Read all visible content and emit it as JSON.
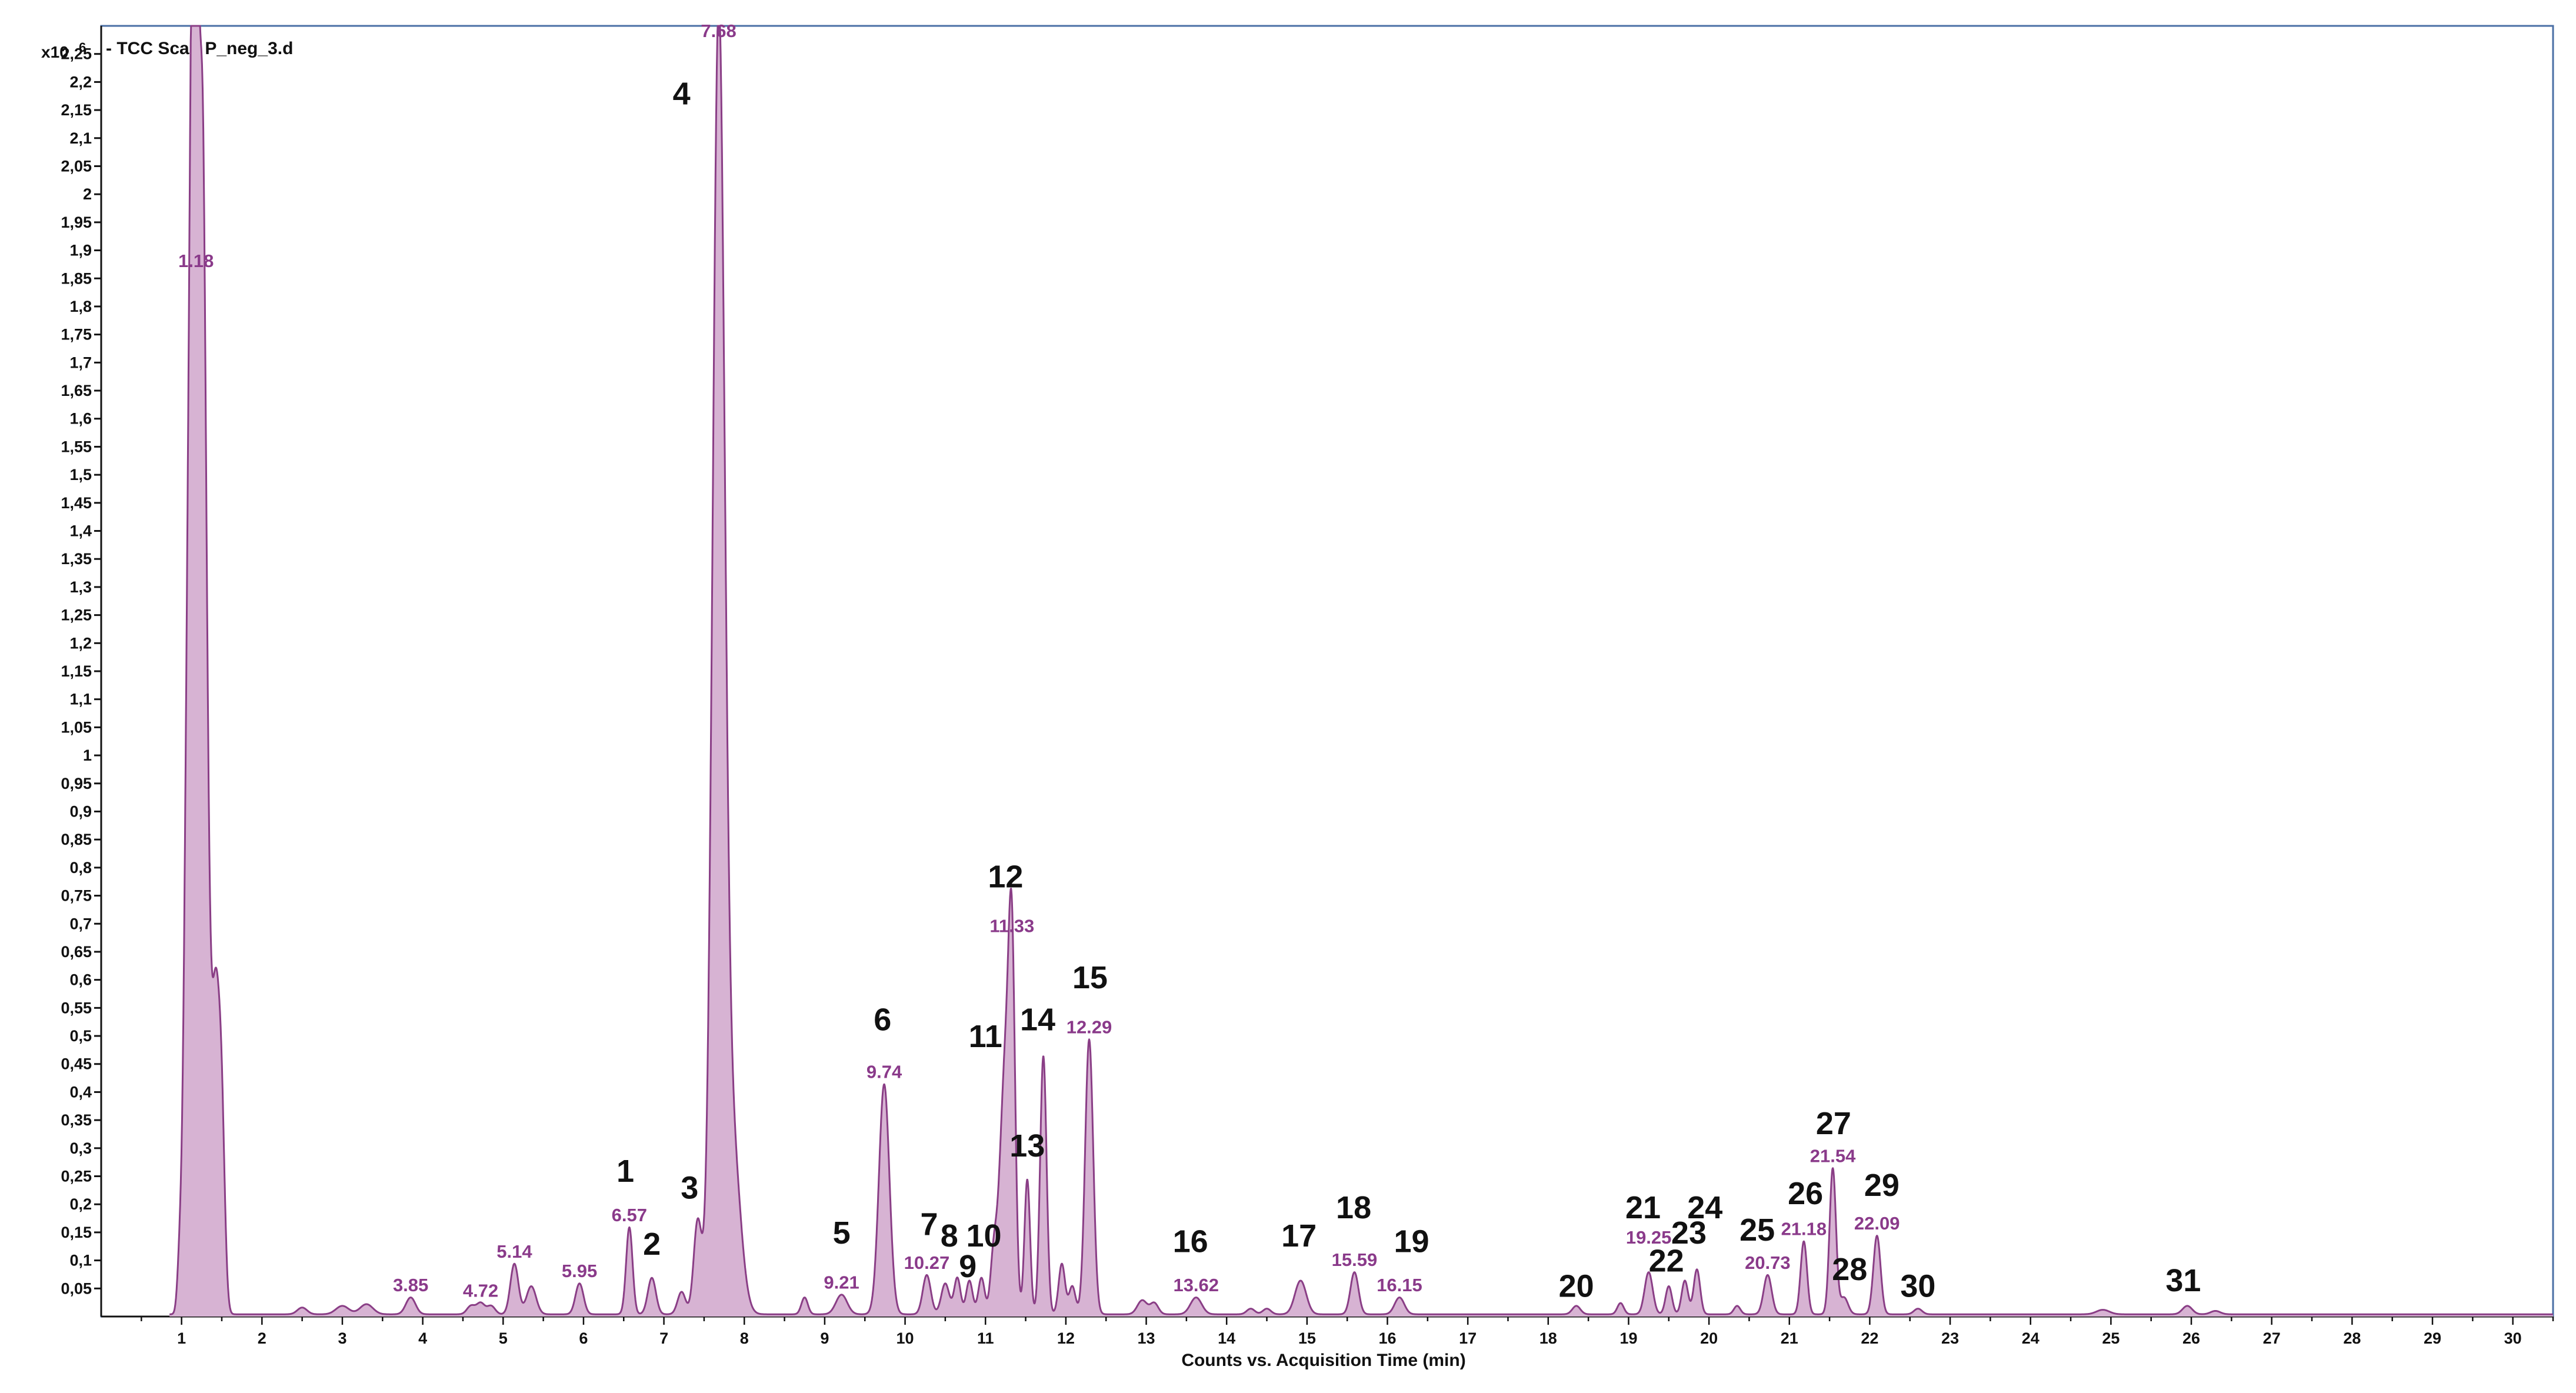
{
  "chart_data": {
    "type": "line",
    "title": "- TCC Scan P_neg_3.d",
    "xlabel": "Counts vs. Acquisition Time (min)",
    "ylabel_unit": "x10",
    "ylabel_exp": "6",
    "xlim": [
      0,
      30.5
    ],
    "ylim": [
      0,
      2.3
    ],
    "x_ticks": [
      1,
      2,
      3,
      4,
      5,
      6,
      7,
      8,
      9,
      10,
      11,
      12,
      13,
      14,
      15,
      16,
      17,
      18,
      19,
      20,
      21,
      22,
      23,
      24,
      25,
      26,
      27,
      28,
      29,
      30
    ],
    "y_ticks": [
      {
        "v": 0.05,
        "l": "0,05"
      },
      {
        "v": 0.1,
        "l": "0,1"
      },
      {
        "v": 0.15,
        "l": "0,15"
      },
      {
        "v": 0.2,
        "l": "0,2"
      },
      {
        "v": 0.25,
        "l": "0,25"
      },
      {
        "v": 0.3,
        "l": "0,3"
      },
      {
        "v": 0.35,
        "l": "0,35"
      },
      {
        "v": 0.4,
        "l": "0,4"
      },
      {
        "v": 0.45,
        "l": "0,45"
      },
      {
        "v": 0.5,
        "l": "0,5"
      },
      {
        "v": 0.55,
        "l": "0,55"
      },
      {
        "v": 0.6,
        "l": "0,6"
      },
      {
        "v": 0.65,
        "l": "0,65"
      },
      {
        "v": 0.7,
        "l": "0,7"
      },
      {
        "v": 0.75,
        "l": "0,75"
      },
      {
        "v": 0.8,
        "l": "0,8"
      },
      {
        "v": 0.85,
        "l": "0,85"
      },
      {
        "v": 0.9,
        "l": "0,9"
      },
      {
        "v": 0.95,
        "l": "0,95"
      },
      {
        "v": 1.0,
        "l": "1"
      },
      {
        "v": 1.05,
        "l": "1,05"
      },
      {
        "v": 1.1,
        "l": "1,1"
      },
      {
        "v": 1.15,
        "l": "1,15"
      },
      {
        "v": 1.2,
        "l": "1,2"
      },
      {
        "v": 1.25,
        "l": "1,25"
      },
      {
        "v": 1.3,
        "l": "1,3"
      },
      {
        "v": 1.35,
        "l": "1,35"
      },
      {
        "v": 1.4,
        "l": "1,4"
      },
      {
        "v": 1.45,
        "l": "1,45"
      },
      {
        "v": 1.5,
        "l": "1,5"
      },
      {
        "v": 1.55,
        "l": "1,55"
      },
      {
        "v": 1.6,
        "l": "1,6"
      },
      {
        "v": 1.65,
        "l": "1,65"
      },
      {
        "v": 1.7,
        "l": "1,7"
      },
      {
        "v": 1.75,
        "l": "1,75"
      },
      {
        "v": 1.8,
        "l": "1,8"
      },
      {
        "v": 1.85,
        "l": "1,85"
      },
      {
        "v": 1.9,
        "l": "1,9"
      },
      {
        "v": 1.95,
        "l": "1,95"
      },
      {
        "v": 2.0,
        "l": "2"
      },
      {
        "v": 2.05,
        "l": "2,05"
      },
      {
        "v": 2.1,
        "l": "2,1"
      },
      {
        "v": 2.15,
        "l": "2,15"
      },
      {
        "v": 2.2,
        "l": "2,2"
      },
      {
        "v": 2.25,
        "l": "2,25"
      }
    ],
    "peaks": [
      {
        "rt": 0.98,
        "h": 0.11,
        "w": 0.03
      },
      {
        "rt": 1.05,
        "h": 0.45,
        "w": 0.035
      },
      {
        "rt": 1.12,
        "h": 1.72,
        "w": 0.045
      },
      {
        "rt": 1.18,
        "h": 1.86,
        "w": 0.04
      },
      {
        "rt": 1.26,
        "h": 1.74,
        "w": 0.04
      },
      {
        "rt": 1.32,
        "h": 0.58,
        "w": 0.04
      },
      {
        "rt": 1.42,
        "h": 0.55,
        "w": 0.05
      },
      {
        "rt": 1.5,
        "h": 0.3,
        "w": 0.04
      },
      {
        "rt": 2.5,
        "h": 0.012,
        "w": 0.06
      },
      {
        "rt": 3.0,
        "h": 0.015,
        "w": 0.08
      },
      {
        "rt": 3.3,
        "h": 0.018,
        "w": 0.08
      },
      {
        "rt": 3.85,
        "h": 0.03,
        "w": 0.06
      },
      {
        "rt": 4.6,
        "h": 0.015,
        "w": 0.05
      },
      {
        "rt": 4.72,
        "h": 0.02,
        "w": 0.05
      },
      {
        "rt": 4.85,
        "h": 0.015,
        "w": 0.05
      },
      {
        "rt": 5.14,
        "h": 0.09,
        "w": 0.05
      },
      {
        "rt": 5.35,
        "h": 0.05,
        "w": 0.06
      },
      {
        "rt": 5.95,
        "h": 0.055,
        "w": 0.05
      },
      {
        "rt": 6.57,
        "h": 0.155,
        "w": 0.04
      },
      {
        "rt": 6.85,
        "h": 0.065,
        "w": 0.05
      },
      {
        "rt": 7.22,
        "h": 0.04,
        "w": 0.05
      },
      {
        "rt": 7.42,
        "h": 0.165,
        "w": 0.05
      },
      {
        "rt": 7.68,
        "h": 2.27,
        "w": 0.075
      },
      {
        "rt": 7.85,
        "h": 0.3,
        "w": 0.1
      },
      {
        "rt": 8.75,
        "h": 0.03,
        "w": 0.04
      },
      {
        "rt": 9.21,
        "h": 0.035,
        "w": 0.07
      },
      {
        "rt": 9.74,
        "h": 0.41,
        "w": 0.065
      },
      {
        "rt": 10.27,
        "h": 0.07,
        "w": 0.05
      },
      {
        "rt": 10.5,
        "h": 0.055,
        "w": 0.05
      },
      {
        "rt": 10.65,
        "h": 0.065,
        "w": 0.04
      },
      {
        "rt": 10.8,
        "h": 0.06,
        "w": 0.04
      },
      {
        "rt": 10.95,
        "h": 0.065,
        "w": 0.04
      },
      {
        "rt": 11.1,
        "h": 0.09,
        "w": 0.04
      },
      {
        "rt": 11.25,
        "h": 0.45,
        "w": 0.07
      },
      {
        "rt": 11.33,
        "h": 0.5,
        "w": 0.04
      },
      {
        "rt": 11.52,
        "h": 0.24,
        "w": 0.035
      },
      {
        "rt": 11.72,
        "h": 0.46,
        "w": 0.04
      },
      {
        "rt": 11.95,
        "h": 0.09,
        "w": 0.04
      },
      {
        "rt": 12.08,
        "h": 0.05,
        "w": 0.04
      },
      {
        "rt": 12.29,
        "h": 0.49,
        "w": 0.05
      },
      {
        "rt": 12.95,
        "h": 0.025,
        "w": 0.06
      },
      {
        "rt": 13.1,
        "h": 0.02,
        "w": 0.05
      },
      {
        "rt": 13.62,
        "h": 0.03,
        "w": 0.07
      },
      {
        "rt": 14.3,
        "h": 0.01,
        "w": 0.05
      },
      {
        "rt": 14.5,
        "h": 0.01,
        "w": 0.05
      },
      {
        "rt": 14.92,
        "h": 0.06,
        "w": 0.07
      },
      {
        "rt": 15.59,
        "h": 0.075,
        "w": 0.05
      },
      {
        "rt": 16.15,
        "h": 0.03,
        "w": 0.06
      },
      {
        "rt": 18.35,
        "h": 0.015,
        "w": 0.05
      },
      {
        "rt": 18.9,
        "h": 0.02,
        "w": 0.04
      },
      {
        "rt": 19.25,
        "h": 0.075,
        "w": 0.05
      },
      {
        "rt": 19.5,
        "h": 0.05,
        "w": 0.04
      },
      {
        "rt": 19.7,
        "h": 0.06,
        "w": 0.04
      },
      {
        "rt": 19.85,
        "h": 0.08,
        "w": 0.04
      },
      {
        "rt": 20.35,
        "h": 0.015,
        "w": 0.04
      },
      {
        "rt": 20.73,
        "h": 0.07,
        "w": 0.05
      },
      {
        "rt": 21.18,
        "h": 0.13,
        "w": 0.04
      },
      {
        "rt": 21.54,
        "h": 0.26,
        "w": 0.04
      },
      {
        "rt": 21.68,
        "h": 0.03,
        "w": 0.05
      },
      {
        "rt": 22.09,
        "h": 0.14,
        "w": 0.045
      },
      {
        "rt": 22.6,
        "h": 0.01,
        "w": 0.05
      },
      {
        "rt": 24.9,
        "h": 0.008,
        "w": 0.08
      },
      {
        "rt": 25.95,
        "h": 0.015,
        "w": 0.06
      },
      {
        "rt": 26.3,
        "h": 0.006,
        "w": 0.06
      }
    ],
    "rt_labels": [
      {
        "text": "1.18",
        "x": 1.18,
        "y": 1.87
      },
      {
        "text": "3.85",
        "x": 3.85,
        "y": 0.045
      },
      {
        "text": "4.72",
        "x": 4.72,
        "y": 0.035
      },
      {
        "text": "5.14",
        "x": 5.14,
        "y": 0.105
      },
      {
        "text": "5.95",
        "x": 5.95,
        "y": 0.07
      },
      {
        "text": "6.57",
        "x": 6.57,
        "y": 0.17
      },
      {
        "text": "7.68",
        "x": 7.68,
        "y": 2.28
      },
      {
        "text": "9.21",
        "x": 9.21,
        "y": 0.05
      },
      {
        "text": "9.74",
        "x": 9.74,
        "y": 0.425
      },
      {
        "text": "10.27",
        "x": 10.27,
        "y": 0.085
      },
      {
        "text": "11.33",
        "x": 11.33,
        "y": 0.685
      },
      {
        "text": "12.29",
        "x": 12.29,
        "y": 0.505
      },
      {
        "text": "13.62",
        "x": 13.62,
        "y": 0.045
      },
      {
        "text": "15.59",
        "x": 15.59,
        "y": 0.09
      },
      {
        "text": "16.15",
        "x": 16.15,
        "y": 0.045
      },
      {
        "text": "19.25",
        "x": 19.25,
        "y": 0.13
      },
      {
        "text": "20.73",
        "x": 20.73,
        "y": 0.085
      },
      {
        "text": "21.18",
        "x": 21.18,
        "y": 0.145
      },
      {
        "text": "21.54",
        "x": 21.54,
        "y": 0.275
      },
      {
        "text": "22.09",
        "x": 22.09,
        "y": 0.155
      }
    ],
    "peak_numbers": [
      {
        "text": "1",
        "x": 6.52,
        "y": 0.24
      },
      {
        "text": "2",
        "x": 6.85,
        "y": 0.11
      },
      {
        "text": "3",
        "x": 7.32,
        "y": 0.21
      },
      {
        "text": "4",
        "x": 7.22,
        "y": 2.16
      },
      {
        "text": "5",
        "x": 9.21,
        "y": 0.13
      },
      {
        "text": "6",
        "x": 9.72,
        "y": 0.51
      },
      {
        "text": "7",
        "x": 10.3,
        "y": 0.145
      },
      {
        "text": "8",
        "x": 10.55,
        "y": 0.125
      },
      {
        "text": "9",
        "x": 10.78,
        "y": 0.07
      },
      {
        "text": "10",
        "x": 10.98,
        "y": 0.125
      },
      {
        "text": "11",
        "x": 11.0,
        "y": 0.48
      },
      {
        "text": "12",
        "x": 11.25,
        "y": 0.765
      },
      {
        "text": "13",
        "x": 11.52,
        "y": 0.285
      },
      {
        "text": "14",
        "x": 11.65,
        "y": 0.51
      },
      {
        "text": "15",
        "x": 12.3,
        "y": 0.585
      },
      {
        "text": "16",
        "x": 13.55,
        "y": 0.115
      },
      {
        "text": "17",
        "x": 14.9,
        "y": 0.125
      },
      {
        "text": "18",
        "x": 15.58,
        "y": 0.175
      },
      {
        "text": "19",
        "x": 16.3,
        "y": 0.115
      },
      {
        "text": "20",
        "x": 18.35,
        "y": 0.035
      },
      {
        "text": "21",
        "x": 19.18,
        "y": 0.175
      },
      {
        "text": "22",
        "x": 19.47,
        "y": 0.08
      },
      {
        "text": "23",
        "x": 19.75,
        "y": 0.13
      },
      {
        "text": "24",
        "x": 19.95,
        "y": 0.175
      },
      {
        "text": "25",
        "x": 20.6,
        "y": 0.135
      },
      {
        "text": "26",
        "x": 21.2,
        "y": 0.2
      },
      {
        "text": "27",
        "x": 21.55,
        "y": 0.325
      },
      {
        "text": "28",
        "x": 21.75,
        "y": 0.065
      },
      {
        "text": "29",
        "x": 22.15,
        "y": 0.215
      },
      {
        "text": "30",
        "x": 22.6,
        "y": 0.035
      },
      {
        "text": "31",
        "x": 25.9,
        "y": 0.045
      }
    ],
    "colors": {
      "fill": "#d7b3d3",
      "stroke": "#8a3e86",
      "frame": "#4a6fa5",
      "axis": "#111111",
      "rt_label": "#8a3a8a"
    }
  }
}
